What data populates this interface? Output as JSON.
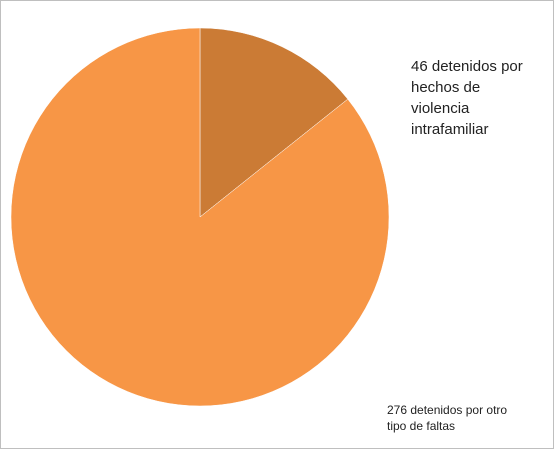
{
  "chart_data": {
    "type": "pie",
    "title": "",
    "slices": [
      {
        "label": "46 detenidos por hechos de violencia intrafamiliar",
        "value": 46,
        "color": "#cb7b35"
      },
      {
        "label": "276 detenidos por otro tipo de faltas",
        "value": 276,
        "color": "#f79646"
      }
    ],
    "start_angle": "12 o'clock",
    "direction": "clockwise",
    "legend": "none",
    "data_labels": "beside slices"
  }
}
